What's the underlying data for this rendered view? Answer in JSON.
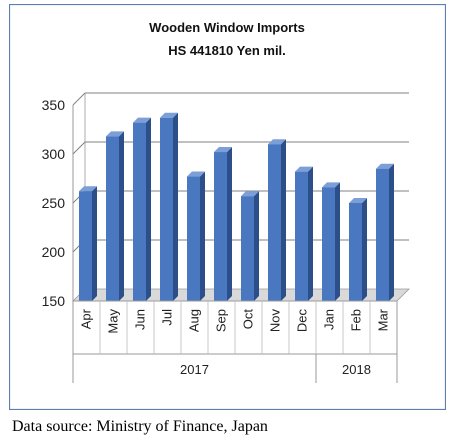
{
  "chart_data": {
    "type": "bar",
    "title": "Wooden Window Imports",
    "subtitle": "HS 441810 Yen mil.",
    "categories": [
      "Apr",
      "May",
      "Jun",
      "Jul",
      "Aug",
      "Sep",
      "Oct",
      "Nov",
      "Dec",
      "Jan",
      "Feb",
      "Mar"
    ],
    "values": [
      262,
      318,
      332,
      337,
      277,
      302,
      257,
      310,
      282,
      266,
      250,
      285
    ],
    "year_groups": [
      {
        "label": "2017",
        "count": 9
      },
      {
        "label": "2018",
        "count": 3
      }
    ],
    "ylim": [
      150,
      350
    ],
    "yticks": [
      150,
      200,
      250,
      300,
      350
    ],
    "grid": true,
    "legend": "none",
    "colors": {
      "bar_front": "#4a78c0",
      "bar_side": "#2c4f8a",
      "bar_top": "#7c9fd8",
      "border": "#5a7fb0",
      "grid": "#808080"
    }
  },
  "source": "Data source: Ministry of Finance, Japan"
}
